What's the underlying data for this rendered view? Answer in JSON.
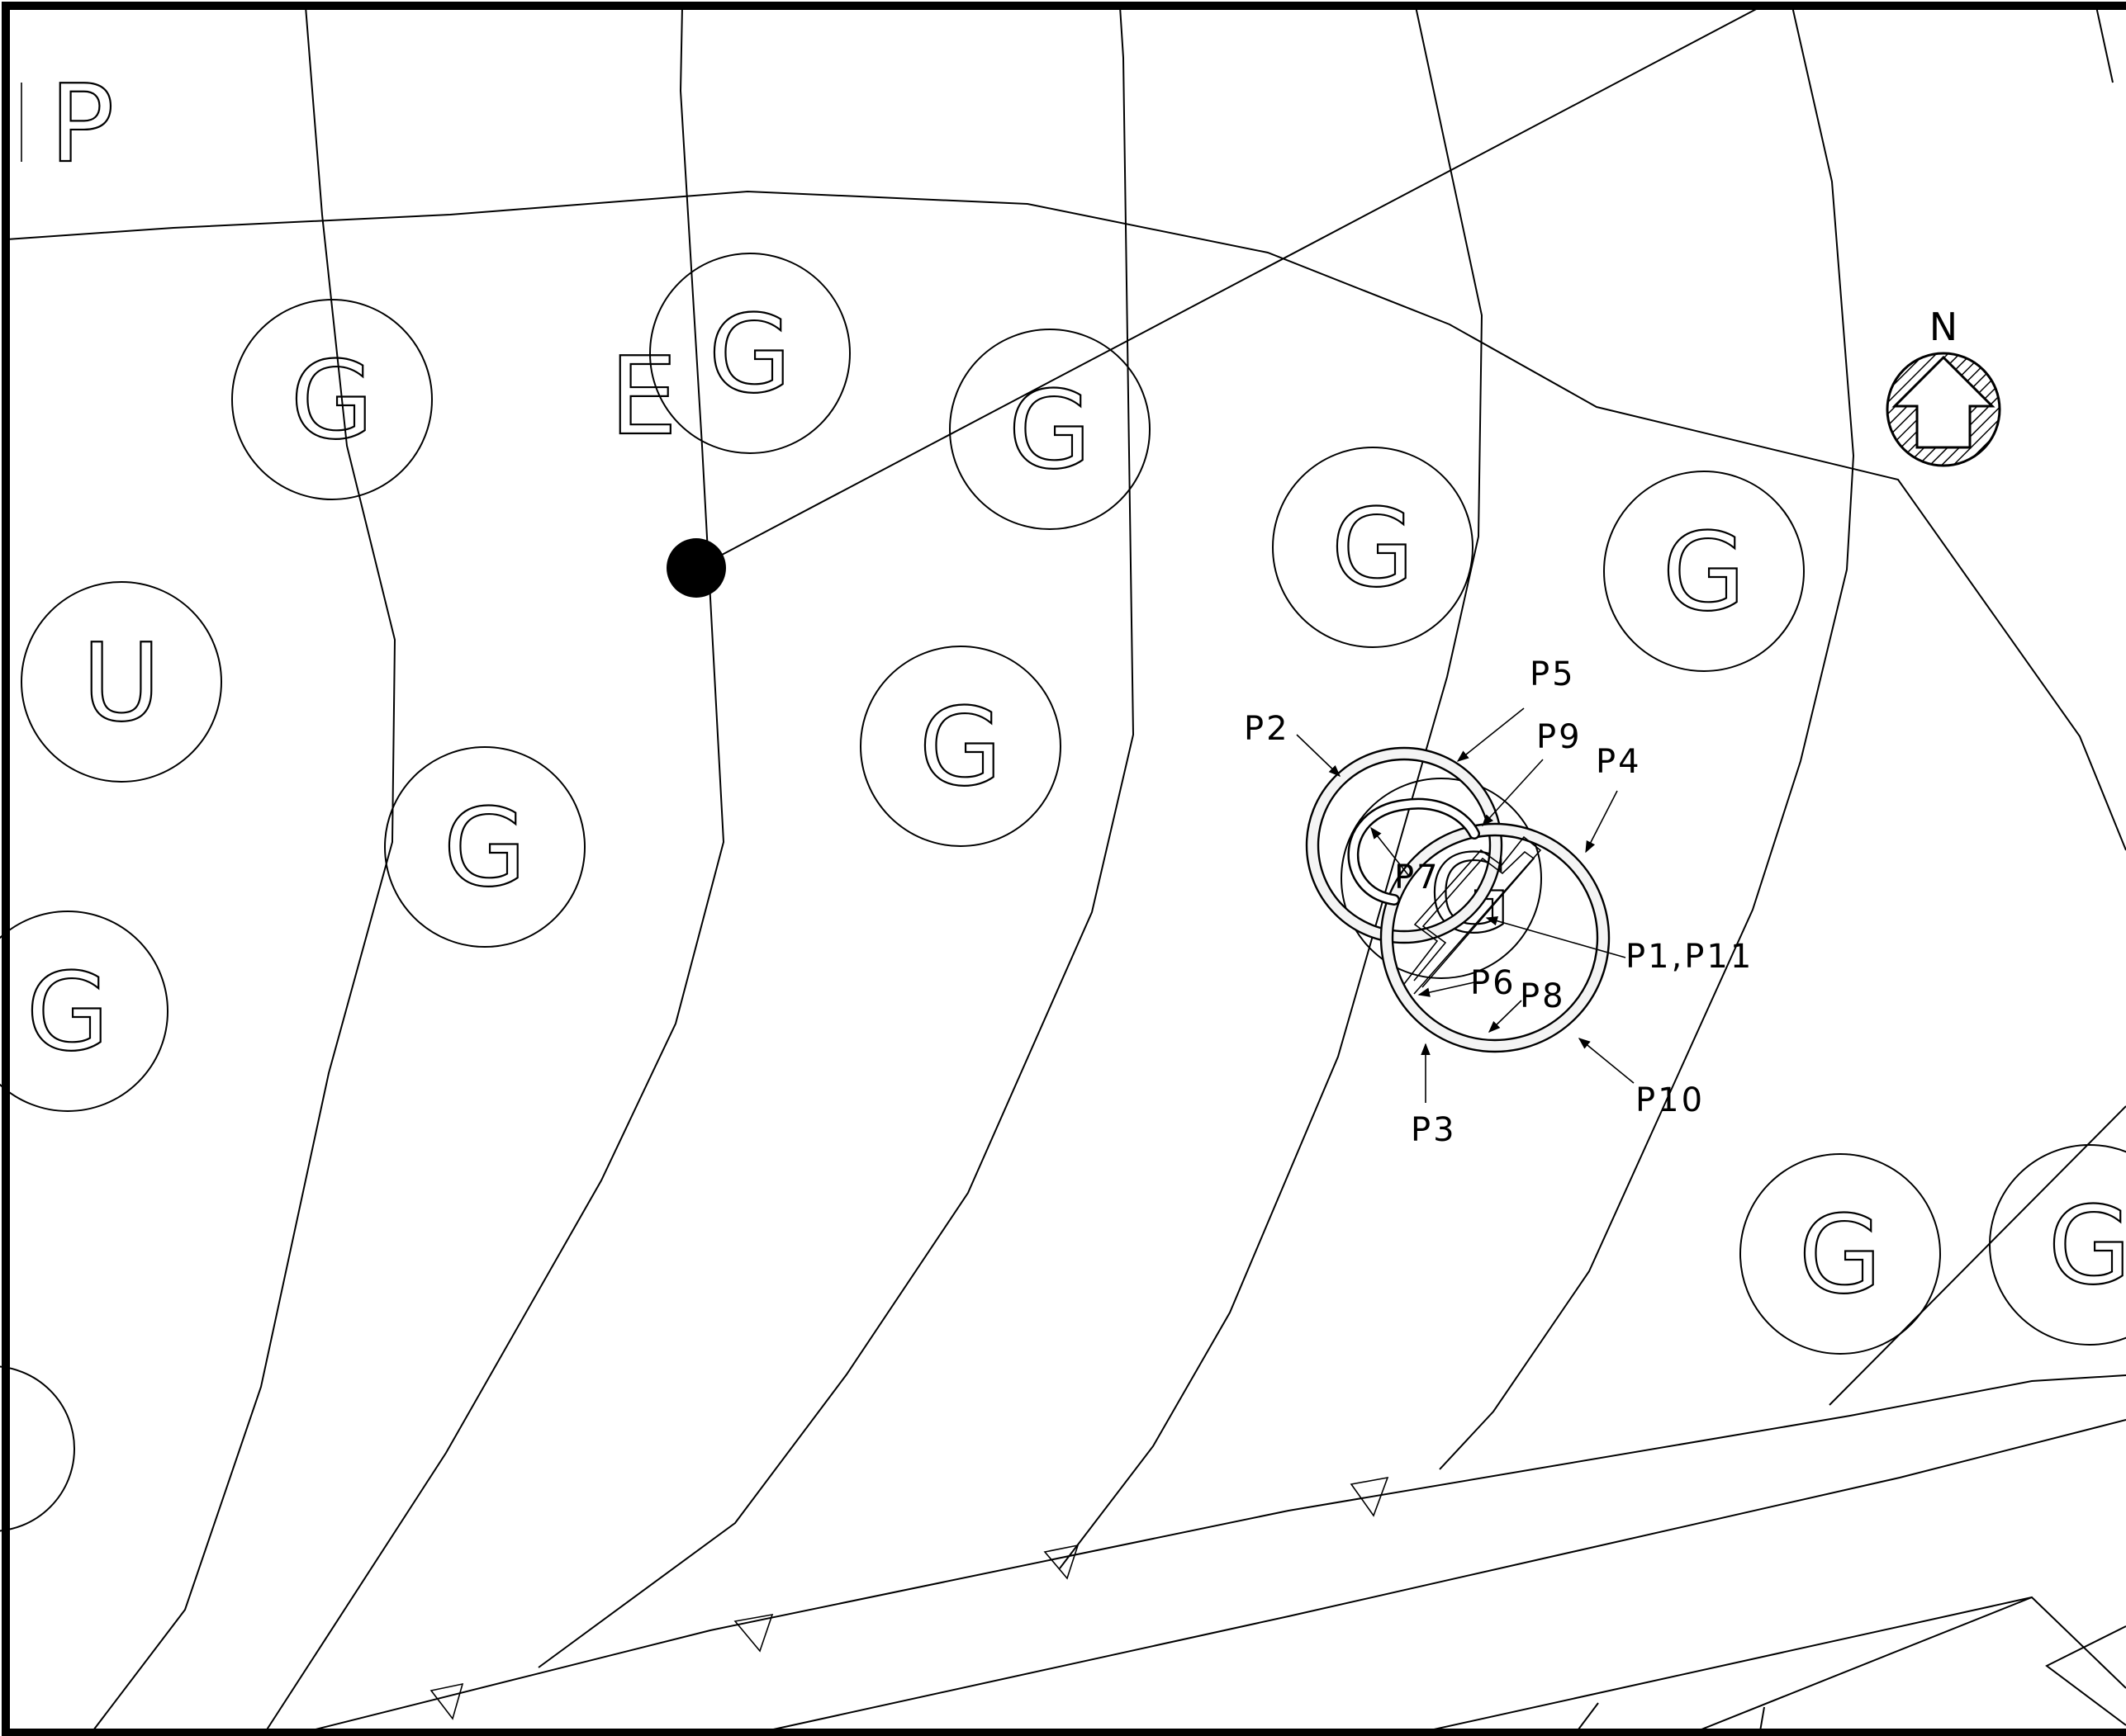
{
  "drawing": {
    "north_label": "N",
    "corner_letter": "P",
    "side_letter": "E",
    "unit_letters": [
      "G",
      "G",
      "G",
      "G",
      "G",
      "G",
      "U",
      "G",
      "G",
      "G",
      "G",
      "G",
      "G"
    ],
    "callouts": [
      "P2",
      "P5",
      "P9",
      "P4",
      "P7",
      "P1,P11",
      "P6",
      "P8",
      "P3",
      "P10"
    ]
  }
}
